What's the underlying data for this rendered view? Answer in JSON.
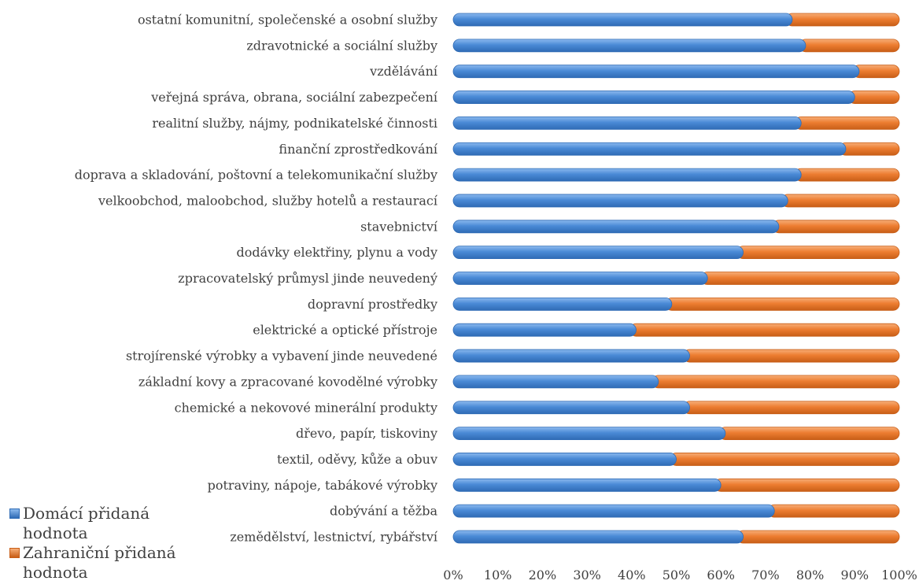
{
  "chart_data": {
    "type": "bar",
    "orientation": "horizontal",
    "stacked": true,
    "percent_stacked": true,
    "categories": [
      "zemědělství, lestnictví, rybářství",
      "dobývání a těžba",
      "potraviny, nápoje, tabákové výrobky",
      "textil, oděvy, kůže a obuv",
      "dřevo, papír, tiskoviny",
      "chemické a nekovové minerální produkty",
      "základní kovy a zpracované kovodělné výrobky",
      "strojírenské výrobky a vybavení jinde neuvedené",
      "elektrické a optické přístroje",
      "dopravní prostředky",
      "zpracovatelský průmysl jinde neuvedený",
      "dodávky elektřiny, plynu a vody",
      "stavebnictví",
      "velkoobchod, maloobchod, služby hotelů a restaurací",
      "doprava a skladování, poštovní a telekomunikační služby",
      "finanční zprostředkování",
      "realitní služby, nájmy, podnikatelské činnosti",
      "veřejná správa, obrana, sociální zabezpečení",
      "vzdělávání",
      "zdravotnické a sociální služby",
      "ostatní komunitní, společenské a osobní služby"
    ],
    "series": [
      {
        "name": "Domácí přidaná hodnota",
        "color": "#4a8ad6",
        "values": [
          65,
          72,
          60,
          50,
          61,
          53,
          46,
          53,
          41,
          49,
          57,
          65,
          73,
          75,
          78,
          88,
          78,
          90,
          91,
          79,
          76
        ]
      },
      {
        "name": "Zahraniční přidaná hodnota",
        "color": "#ed7d31",
        "values": [
          35,
          28,
          40,
          50,
          39,
          47,
          54,
          47,
          59,
          51,
          43,
          35,
          27,
          25,
          22,
          12,
          22,
          10,
          9,
          21,
          24
        ]
      }
    ],
    "xlim": [
      0,
      100
    ],
    "xticks": [
      "0%",
      "10%",
      "20%",
      "30%",
      "40%",
      "50%",
      "60%",
      "70%",
      "80%",
      "90%",
      "100%"
    ],
    "grid": false,
    "legend_position": "bottom-left"
  },
  "legend": {
    "domestic_label": "Domácí přidaná hodnota",
    "foreign_label": "Zahraniční přidaná hodnota",
    "domestic_color": "#4a8ad6",
    "foreign_color": "#ed7d31"
  }
}
